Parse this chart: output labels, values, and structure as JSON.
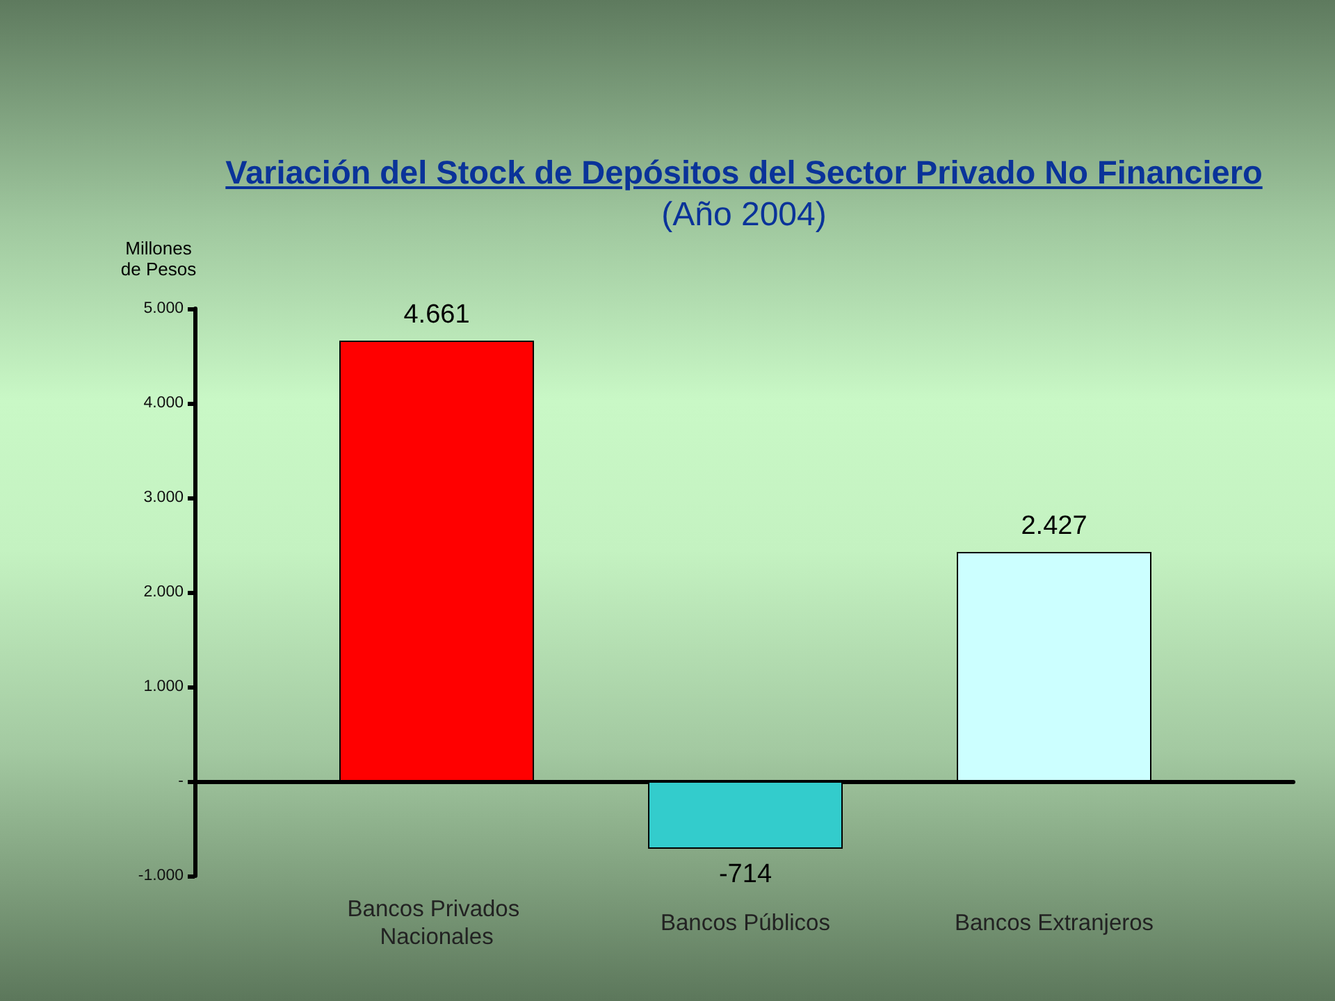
{
  "chart_data": {
    "type": "bar",
    "title": "Variación del Stock de Depósitos del Sector Privado No Financiero",
    "subtitle": "(Año 2004)",
    "ylabel": "Millones de Pesos",
    "categories": [
      "Bancos Privados Nacionales",
      "Bancos Públicos",
      "Bancos Extranjeros"
    ],
    "values": [
      4661,
      -714,
      2427
    ],
    "colors": [
      "#ff0000",
      "#33cccc",
      "#ccffff"
    ],
    "value_labels": [
      "4.661",
      "-714",
      "2.427"
    ],
    "ylim": [
      -1000,
      5000
    ],
    "yticks": [
      {
        "value": -1000,
        "label": "-1.000"
      },
      {
        "value": 0,
        "label": "-"
      },
      {
        "value": 1000,
        "label": "1.000"
      },
      {
        "value": 2000,
        "label": "2.000"
      },
      {
        "value": 3000,
        "label": "3.000"
      },
      {
        "value": 4000,
        "label": "4.000"
      },
      {
        "value": 5000,
        "label": "5.000"
      }
    ]
  }
}
